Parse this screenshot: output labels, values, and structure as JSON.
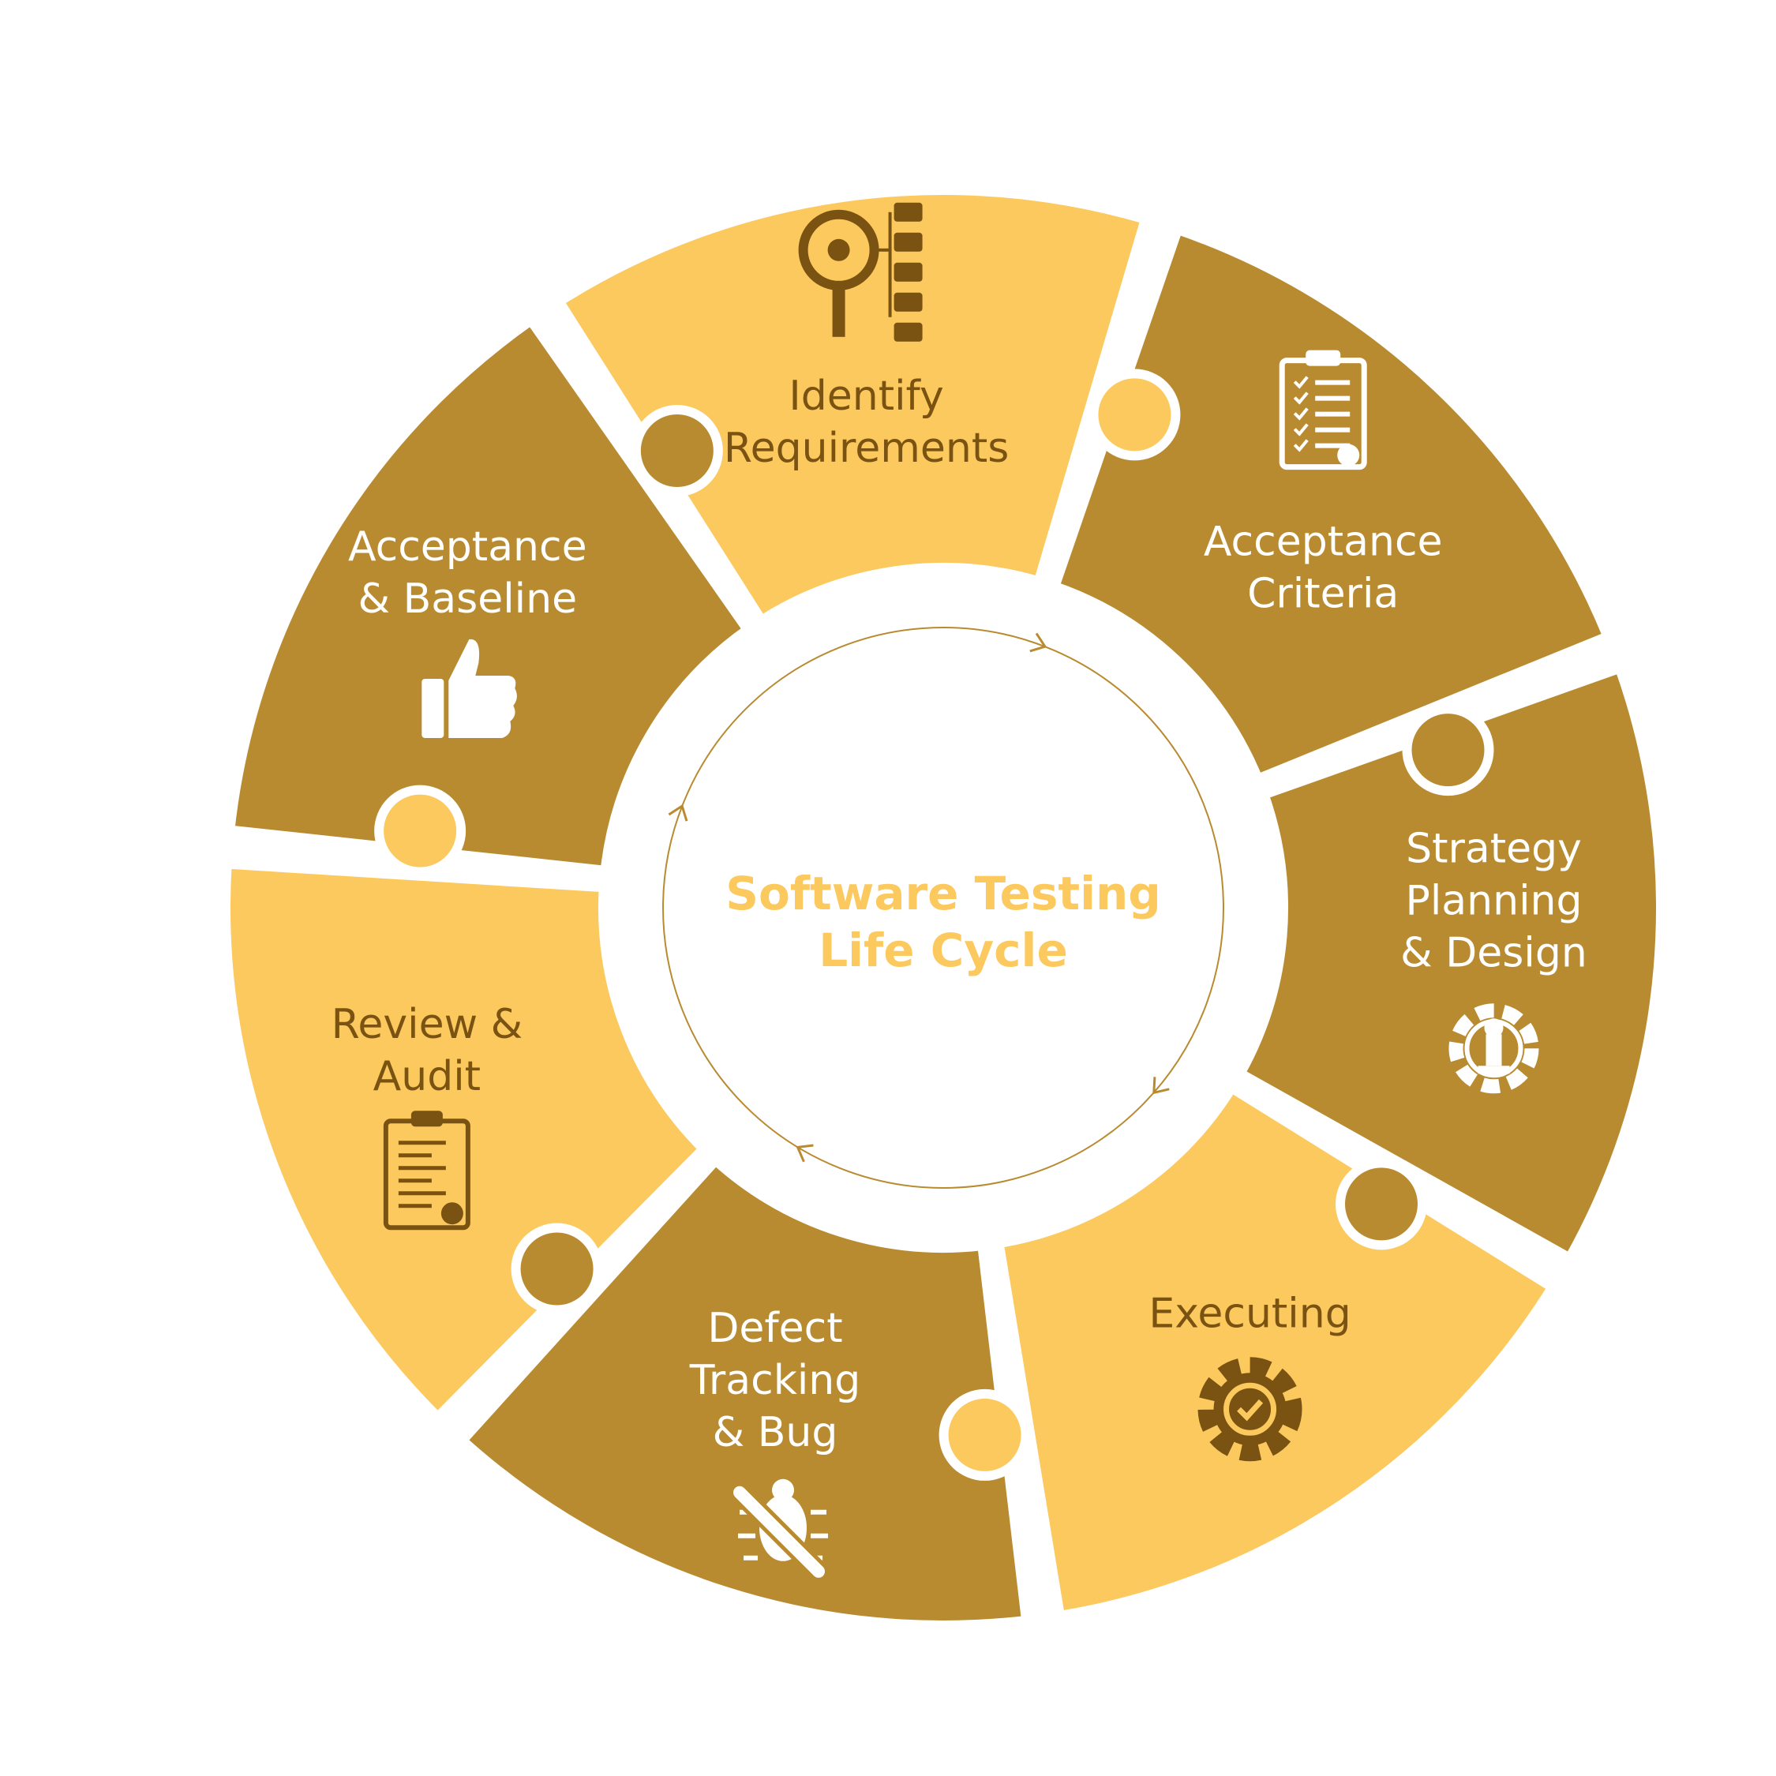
{
  "title_lines": [
    "Software Testing",
    "Life Cycle"
  ],
  "colors": {
    "light": "#FBC95E",
    "dark": "#B98B31",
    "text_on_light": "#7A5312",
    "text_on_dark": "#FFFFFF",
    "icon_on_light": "#7A5312",
    "icon_on_dark": "#FFFFFF",
    "center_title": "#FBC95E",
    "ring_line": "#B98B31"
  },
  "segments": [
    {
      "id": "identify-requirements",
      "lines": [
        "Identify",
        "Requirements"
      ],
      "tone": "light",
      "icon": "requirements-search-icon"
    },
    {
      "id": "acceptance-criteria",
      "lines": [
        "Acceptance",
        "Criteria"
      ],
      "tone": "dark",
      "icon": "checklist-clipboard-icon"
    },
    {
      "id": "strategy-planning-design",
      "lines": [
        "Strategy",
        "Planning",
        "& Design"
      ],
      "tone": "dark",
      "icon": "gear-chess-strategy-icon"
    },
    {
      "id": "executing",
      "lines": [
        "Executing"
      ],
      "tone": "light",
      "icon": "gear-check-icon"
    },
    {
      "id": "defect-tracking-bug",
      "lines": [
        "Defect",
        "Tracking",
        "& Bug"
      ],
      "tone": "dark",
      "icon": "bug-wrench-icon"
    },
    {
      "id": "review-audit",
      "lines": [
        "Review &",
        "Audit"
      ],
      "tone": "light",
      "icon": "audit-clipboard-icon"
    },
    {
      "id": "acceptance-baseline",
      "lines": [
        "Acceptance",
        "& Baseline"
      ],
      "tone": "dark",
      "icon": "thumbs-up-icon"
    }
  ]
}
